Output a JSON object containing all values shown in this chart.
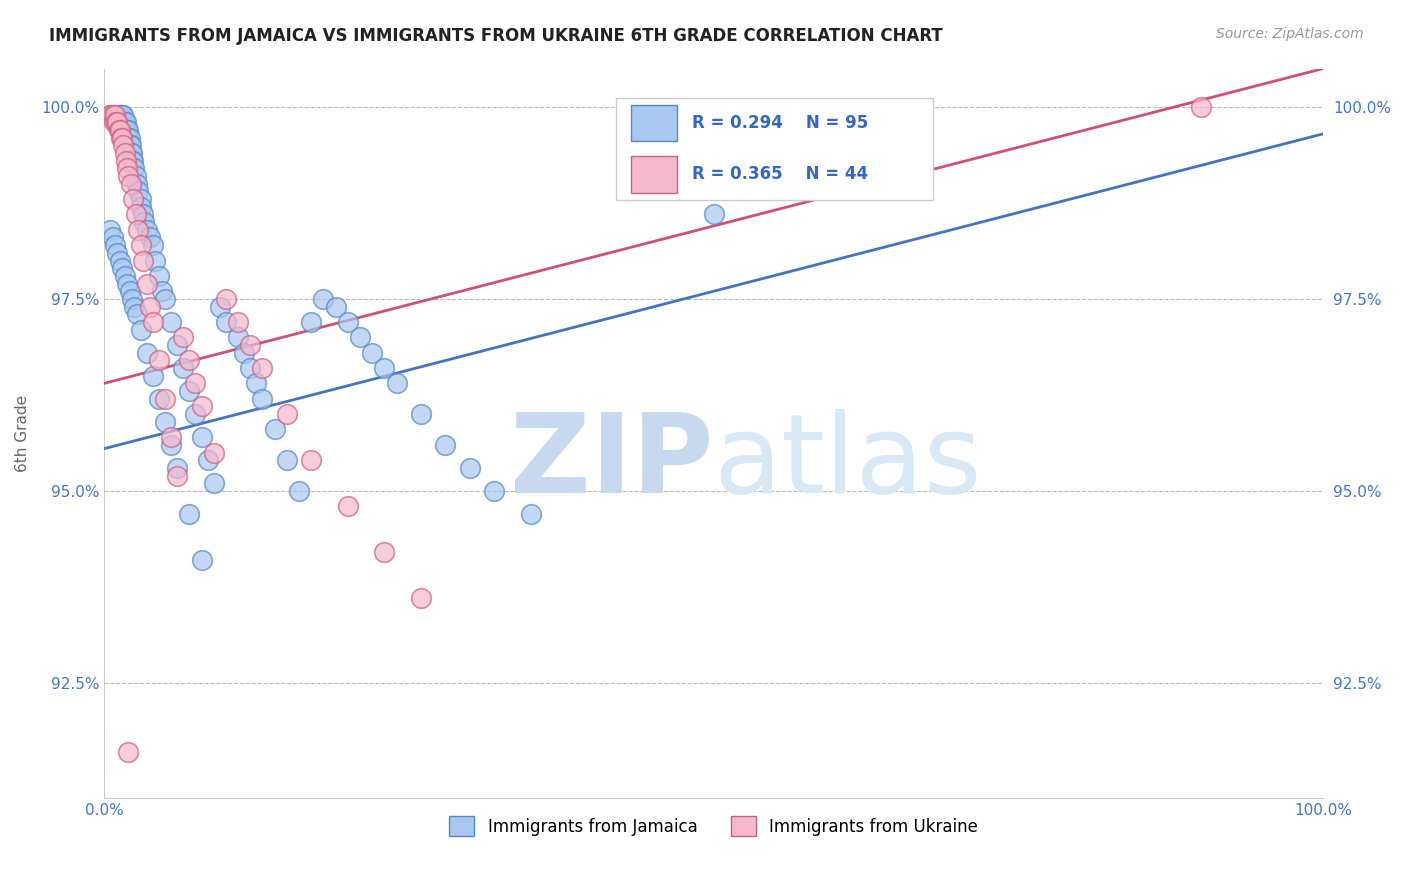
{
  "title": "IMMIGRANTS FROM JAMAICA VS IMMIGRANTS FROM UKRAINE 6TH GRADE CORRELATION CHART",
  "source": "Source: ZipAtlas.com",
  "xlabel": "",
  "ylabel": "6th Grade",
  "xlim": [
    0.0,
    1.0
  ],
  "ylim": [
    0.91,
    1.005
  ],
  "x_tick_labels": [
    "0.0%",
    "100.0%"
  ],
  "x_tick_vals": [
    0.0,
    1.0
  ],
  "y_tick_labels": [
    "92.5%",
    "95.0%",
    "97.5%",
    "100.0%"
  ],
  "y_tick_vals": [
    0.925,
    0.95,
    0.975,
    1.0
  ],
  "legend_r1": "R = 0.294",
  "legend_n1": "N = 95",
  "legend_r2": "R = 0.365",
  "legend_n2": "N = 44",
  "color_blue": "#A8C8F0",
  "color_pink": "#F4B8CC",
  "edge_blue": "#5588CC",
  "edge_pink": "#D06080",
  "line_blue": "#4472C4",
  "line_pink": "#D05070",
  "watermark_zip": "ZIP",
  "watermark_atlas": "atlas",
  "watermark_color": "#D8E4F4",
  "background": "#FFFFFF",
  "grid_color": "#BBBBBB",
  "blue_line_x": [
    0.0,
    1.0
  ],
  "blue_line_y": [
    0.9555,
    0.9965
  ],
  "pink_line_x": [
    0.0,
    1.0
  ],
  "pink_line_y": [
    0.964,
    1.005
  ],
  "jamaica_x": [
    0.005,
    0.008,
    0.01,
    0.01,
    0.012,
    0.013,
    0.013,
    0.014,
    0.015,
    0.015,
    0.016,
    0.016,
    0.017,
    0.017,
    0.018,
    0.018,
    0.019,
    0.019,
    0.02,
    0.02,
    0.021,
    0.021,
    0.022,
    0.022,
    0.023,
    0.023,
    0.024,
    0.025,
    0.026,
    0.027,
    0.028,
    0.03,
    0.03,
    0.032,
    0.033,
    0.035,
    0.038,
    0.04,
    0.042,
    0.045,
    0.048,
    0.05,
    0.055,
    0.06,
    0.065,
    0.07,
    0.075,
    0.08,
    0.085,
    0.09,
    0.095,
    0.1,
    0.11,
    0.115,
    0.12,
    0.125,
    0.13,
    0.14,
    0.15,
    0.16,
    0.17,
    0.18,
    0.19,
    0.2,
    0.21,
    0.22,
    0.23,
    0.24,
    0.26,
    0.28,
    0.3,
    0.32,
    0.35,
    0.005,
    0.007,
    0.009,
    0.011,
    0.013,
    0.015,
    0.017,
    0.019,
    0.021,
    0.023,
    0.025,
    0.027,
    0.03,
    0.035,
    0.04,
    0.045,
    0.05,
    0.055,
    0.06,
    0.07,
    0.08,
    0.5
  ],
  "jamaica_y": [
    0.999,
    0.999,
    0.999,
    0.998,
    0.999,
    0.999,
    0.998,
    0.999,
    0.999,
    0.998,
    0.999,
    0.998,
    0.998,
    0.997,
    0.998,
    0.997,
    0.997,
    0.996,
    0.997,
    0.996,
    0.996,
    0.995,
    0.995,
    0.994,
    0.994,
    0.993,
    0.993,
    0.992,
    0.991,
    0.99,
    0.989,
    0.988,
    0.987,
    0.986,
    0.985,
    0.984,
    0.983,
    0.982,
    0.98,
    0.978,
    0.976,
    0.975,
    0.972,
    0.969,
    0.966,
    0.963,
    0.96,
    0.957,
    0.954,
    0.951,
    0.974,
    0.972,
    0.97,
    0.968,
    0.966,
    0.964,
    0.962,
    0.958,
    0.954,
    0.95,
    0.972,
    0.975,
    0.974,
    0.972,
    0.97,
    0.968,
    0.966,
    0.964,
    0.96,
    0.956,
    0.953,
    0.95,
    0.947,
    0.984,
    0.983,
    0.982,
    0.981,
    0.98,
    0.979,
    0.978,
    0.977,
    0.976,
    0.975,
    0.974,
    0.973,
    0.971,
    0.968,
    0.965,
    0.962,
    0.959,
    0.956,
    0.953,
    0.947,
    0.941,
    0.986
  ],
  "ukraine_x": [
    0.005,
    0.007,
    0.008,
    0.009,
    0.01,
    0.011,
    0.012,
    0.013,
    0.014,
    0.015,
    0.016,
    0.017,
    0.018,
    0.019,
    0.02,
    0.022,
    0.024,
    0.026,
    0.028,
    0.03,
    0.032,
    0.035,
    0.038,
    0.04,
    0.045,
    0.05,
    0.055,
    0.06,
    0.065,
    0.07,
    0.075,
    0.08,
    0.09,
    0.1,
    0.11,
    0.12,
    0.13,
    0.15,
    0.17,
    0.2,
    0.23,
    0.26,
    0.9,
    0.02
  ],
  "ukraine_y": [
    0.999,
    0.999,
    0.998,
    0.999,
    0.998,
    0.998,
    0.997,
    0.997,
    0.996,
    0.996,
    0.995,
    0.994,
    0.993,
    0.992,
    0.991,
    0.99,
    0.988,
    0.986,
    0.984,
    0.982,
    0.98,
    0.977,
    0.974,
    0.972,
    0.967,
    0.962,
    0.957,
    0.952,
    0.97,
    0.967,
    0.964,
    0.961,
    0.955,
    0.975,
    0.972,
    0.969,
    0.966,
    0.96,
    0.954,
    0.948,
    0.942,
    0.936,
    1.0,
    0.916
  ]
}
